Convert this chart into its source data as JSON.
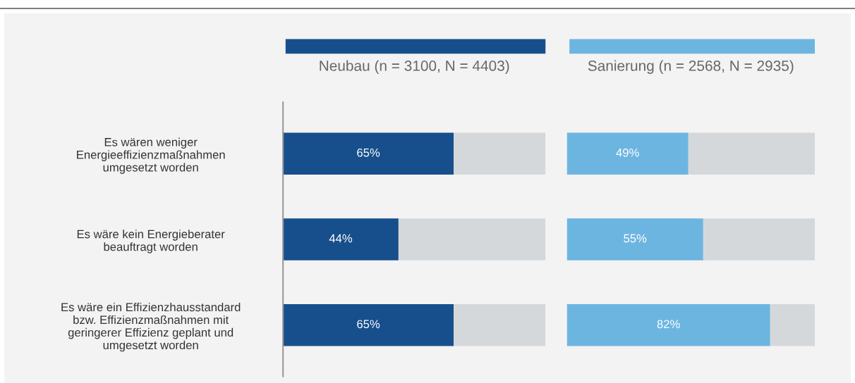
{
  "chart_data": [
    {
      "type": "bar",
      "orientation": "horizontal",
      "stacked": true,
      "legend": "top",
      "tick_labels": "y",
      "xlim": [
        0,
        100
      ],
      "categories": [
        "Es wären weniger\nEnergieeffizienzmaßnahmen\numgesetzt worden",
        "Es wäre kein Energieberater\nbeauftragt worden",
        "Es wäre ein Effizienzhausstandard\nbzw. Effizienzmaßnahmen mit\ngeringerer Effizienz geplant und\numgesetzt worden"
      ],
      "series": [
        {
          "name": "Neubau (n = 3100, N = 4403)",
          "color": "#174f8c",
          "values": [
            65,
            44,
            65
          ],
          "value_labels": [
            "65%",
            "44%",
            "65%"
          ]
        },
        {
          "color": "#d5d8db",
          "values": [
            35,
            56,
            35
          ]
        }
      ]
    },
    {
      "type": "bar",
      "orientation": "horizontal",
      "stacked": true,
      "legend": "top",
      "tick_labels": false,
      "xlim": [
        0,
        100
      ],
      "categories": [
        null,
        null,
        null
      ],
      "series": [
        {
          "name": "Sanierung (n = 2568, N = 2935)",
          "color": "#6db5e1",
          "values": [
            49,
            55,
            82
          ],
          "value_labels": [
            "49%",
            "55%",
            "82%"
          ]
        },
        {
          "color": "#d5d8db",
          "values": [
            51,
            45,
            18
          ]
        }
      ]
    }
  ]
}
